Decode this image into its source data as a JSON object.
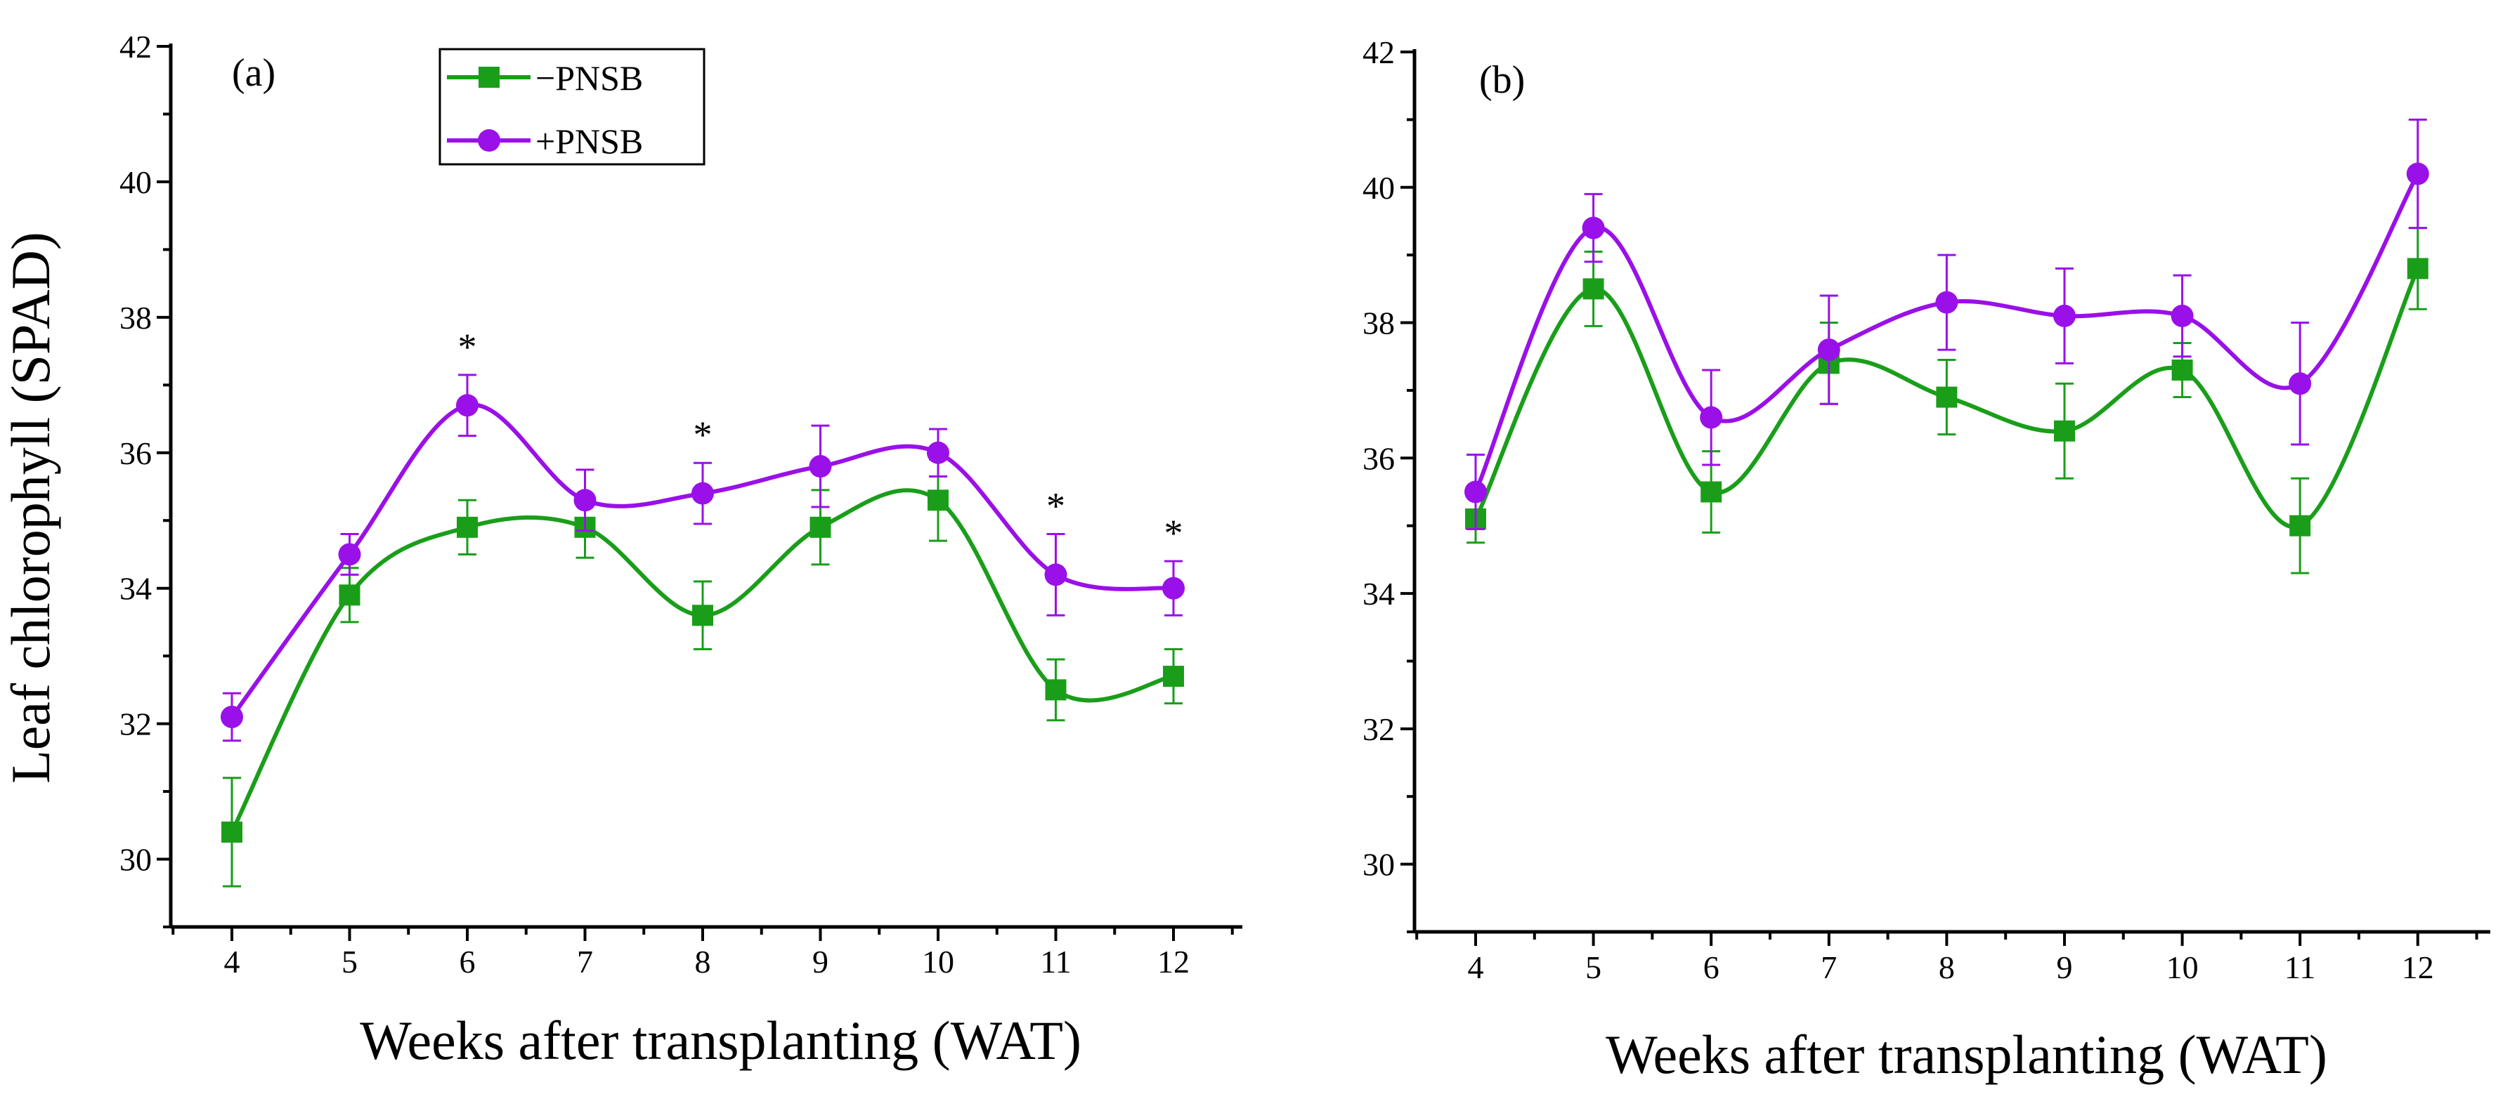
{
  "chart_data": [
    {
      "type": "line",
      "panel": "(a)",
      "xlabel": "Weeks after transplanting (WAT)",
      "ylabel": "Leaf chlorophyll (SPAD)",
      "categories": [
        "4",
        "5",
        "6",
        "7",
        "8",
        "9",
        "10",
        "11",
        "12"
      ],
      "x": [
        4,
        5,
        6,
        7,
        8,
        9,
        10,
        11,
        12
      ],
      "xlim": [
        3.5,
        12.5
      ],
      "ylim": [
        29,
        42
      ],
      "yticks": [
        "30",
        "32",
        "34",
        "36",
        "38",
        "40",
        "42"
      ],
      "significance_marker": "*",
      "significant_x": [
        6,
        8,
        11,
        12
      ],
      "legend": {
        "position": "top-left",
        "entries": [
          "−PNSB",
          "+PNSB"
        ]
      },
      "series": [
        {
          "name": "−PNSB",
          "color": "#1a9e1a",
          "marker": "square",
          "values": [
            30.4,
            33.9,
            34.9,
            34.9,
            33.6,
            34.9,
            35.3,
            32.5,
            32.7
          ],
          "errors": [
            0.8,
            0.4,
            0.4,
            0.45,
            0.5,
            0.55,
            0.6,
            0.45,
            0.4
          ]
        },
        {
          "name": "+PNSB",
          "color": "#9a10e8",
          "marker": "circle",
          "values": [
            32.1,
            34.5,
            36.7,
            35.3,
            35.4,
            35.8,
            36.0,
            34.2,
            34.0
          ],
          "errors": [
            0.35,
            0.3,
            0.45,
            0.45,
            0.45,
            0.6,
            0.35,
            0.6,
            0.4
          ]
        }
      ]
    },
    {
      "type": "line",
      "panel": "(b)",
      "xlabel": "Weeks after transplanting (WAT)",
      "ylabel": "",
      "categories": [
        "4",
        "5",
        "6",
        "7",
        "8",
        "9",
        "10",
        "11",
        "12"
      ],
      "x": [
        4,
        5,
        6,
        7,
        8,
        9,
        10,
        11,
        12
      ],
      "xlim": [
        3.5,
        12.5
      ],
      "ylim": [
        29,
        42
      ],
      "yticks": [
        "30",
        "32",
        "34",
        "36",
        "38",
        "40",
        "42"
      ],
      "series": [
        {
          "name": "−PNSB",
          "color": "#1a9e1a",
          "marker": "square",
          "values": [
            35.1,
            38.5,
            35.5,
            37.4,
            36.9,
            36.4,
            37.3,
            35.0,
            38.8
          ],
          "errors": [
            0.35,
            0.55,
            0.6,
            0.6,
            0.55,
            0.7,
            0.4,
            0.7,
            0.6
          ]
        },
        {
          "name": "+PNSB",
          "color": "#9a10e8",
          "marker": "circle",
          "values": [
            35.5,
            39.4,
            36.6,
            37.6,
            38.3,
            38.1,
            38.1,
            37.1,
            40.2
          ],
          "errors": [
            0.55,
            0.5,
            0.7,
            0.8,
            0.7,
            0.7,
            0.6,
            0.9,
            0.8
          ]
        }
      ]
    }
  ]
}
